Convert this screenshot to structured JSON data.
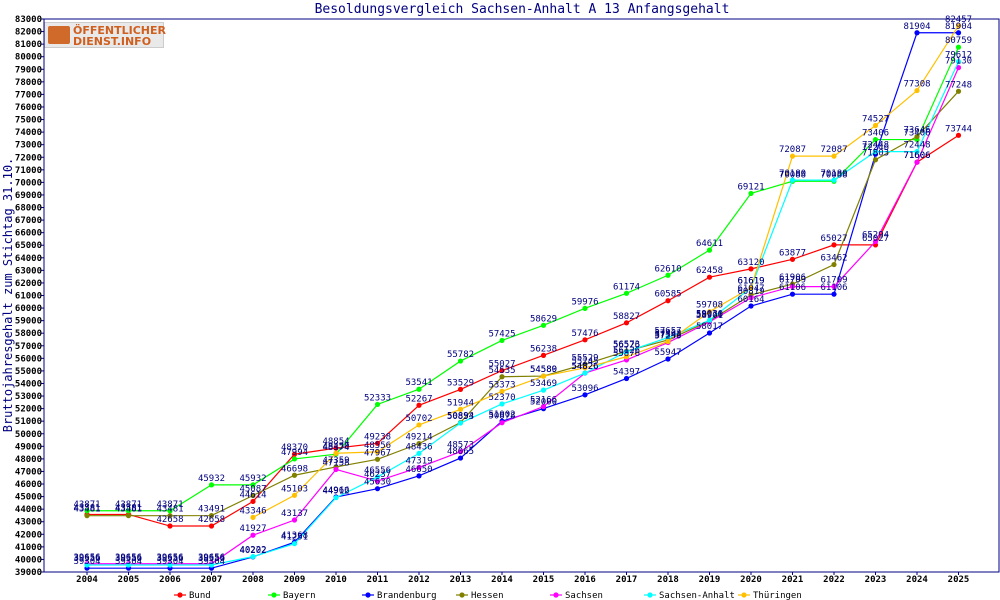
{
  "logo": {
    "line1": "ÖFFENTLICHER",
    "line2": "DIENST.INFO"
  },
  "chart_data": {
    "type": "line",
    "title": "Besoldungsvergleich Sachsen-Anhalt A 13 Anfangsgehalt",
    "xlabel": "",
    "ylabel": "Bruttojahresgehalt zum Stichtag 31.10.",
    "ylim": [
      39000,
      83000
    ],
    "ystep": 1000,
    "grid": false,
    "legend_position": "bottom",
    "x": [
      2004,
      2005,
      2006,
      2007,
      2008,
      2009,
      2010,
      2011,
      2012,
      2013,
      2014,
      2015,
      2016,
      2017,
      2018,
      2019,
      2020,
      2021,
      2022,
      2023,
      2024,
      2025
    ],
    "series": [
      {
        "name": "Bund",
        "color": "#ff0000",
        "values": [
          43581,
          43581,
          42658,
          42658,
          44614,
          48370,
          48854,
          49238,
          52267,
          53529,
          55027,
          56238,
          57476,
          58827,
          60585,
          62458,
          63120,
          63877,
          65027,
          65027,
          71606,
          73744
        ]
      },
      {
        "name": "Bayern",
        "color": "#00ff00",
        "values": [
          43871,
          43871,
          43871,
          45932,
          45932,
          47994,
          48374,
          52333,
          53541,
          55782,
          57425,
          58629,
          59976,
          61174,
          62610,
          64611,
          69121,
          70088,
          70088,
          73406,
          73406,
          80759
        ]
      },
      {
        "name": "Brandenburg",
        "color": "#0000ff",
        "values": [
          39304,
          39304,
          39304,
          39304,
          40202,
          41368,
          44966,
          45630,
          46650,
          48065,
          51002,
          52000,
          53096,
          54397,
          55947,
          58017,
          60164,
          61106,
          61106,
          72246,
          81904,
          81904
        ]
      },
      {
        "name": "Hessen",
        "color": "#808000",
        "values": [
          43481,
          43481,
          43481,
          43491,
          45087,
          46698,
          47359,
          47967,
          49214,
          50894,
          54535,
          54589,
          55529,
          56573,
          57462,
          58976,
          61047,
          61906,
          63462,
          71803,
          73646,
          77248
        ]
      },
      {
        "name": "Sachsen",
        "color": "#ff00ff",
        "values": [
          39656,
          39656,
          39656,
          39656,
          41927,
          43137,
          47158,
          46237,
          47319,
          48573,
          50878,
          52166,
          54826,
          55876,
          57259,
          58901,
          60819,
          61709,
          61709,
          65294,
          71606,
          79130
        ]
      },
      {
        "name": "Sachsen-Anhalt",
        "color": "#00ffff",
        "values": [
          39556,
          39556,
          39556,
          39556,
          40222,
          41251,
          44912,
          46556,
          48436,
          50853,
          52370,
          53469,
          54826,
          56526,
          57657,
          59030,
          61619,
          70180,
          70180,
          72448,
          72448,
          79612
        ]
      },
      {
        "name": "Thüringen",
        "color": "#ffc000",
        "values": [
          null,
          null,
          null,
          null,
          43346,
          45103,
          48450,
          48556,
          50702,
          51944,
          53373,
          54580,
          55245,
          56126,
          57342,
          59708,
          61619,
          72087,
          72087,
          74527,
          77308,
          82457
        ]
      }
    ]
  }
}
